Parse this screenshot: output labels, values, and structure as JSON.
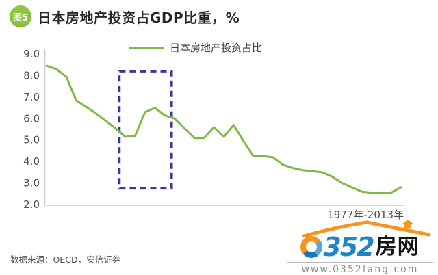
{
  "header": {
    "badge": "图5",
    "title": "日本房地产投资占GDP比重，%"
  },
  "legend": {
    "label": "日本房地产投资占比"
  },
  "chart_data": {
    "type": "line",
    "title": "日本房地产投资占GDP比重，%",
    "x_axis_label": "1977年-2013年",
    "xlabel": "1977年-2013年",
    "ylabel": "",
    "ylim": [
      2.0,
      9.0
    ],
    "y_ticks": [
      "9.0",
      "8.0",
      "7.0",
      "6.0",
      "5.0",
      "4.0",
      "3.0",
      "2.0"
    ],
    "grid": false,
    "legend_position": "top-center",
    "x": [
      1977,
      1978,
      1979,
      1980,
      1981,
      1982,
      1983,
      1984,
      1985,
      1986,
      1987,
      1988,
      1989,
      1990,
      1991,
      1992,
      1993,
      1994,
      1995,
      1996,
      1997,
      1998,
      1999,
      2000,
      2001,
      2002,
      2003,
      2004,
      2005,
      2006,
      2007,
      2008,
      2009,
      2010,
      2011,
      2012,
      2013
    ],
    "series": [
      {
        "name": "日本房地产投资占比",
        "values": [
          8.45,
          8.3,
          7.95,
          6.85,
          6.55,
          6.25,
          5.9,
          5.55,
          5.15,
          5.2,
          6.3,
          6.5,
          6.15,
          6.0,
          5.55,
          5.1,
          5.1,
          5.6,
          5.15,
          5.7,
          4.95,
          4.25,
          4.25,
          4.2,
          3.85,
          3.7,
          3.6,
          3.55,
          3.5,
          3.3,
          3.0,
          2.8,
          2.6,
          2.55,
          2.55,
          2.55,
          2.8
        ]
      }
    ],
    "highlight_box": {
      "x_from": 1984.4,
      "x_to": 1989.7,
      "value_from": 2.75,
      "value_to": 8.2,
      "style": "dashed",
      "color": "#38379b"
    }
  },
  "footer": {
    "source": "数据来源：OECD，安信证券"
  },
  "logo": {
    "full_name": "0352房网",
    "digits": "352",
    "suffix": "房网",
    "url": "www.0352fang.com"
  },
  "colors": {
    "line_green": "#7db946",
    "badge_green": "#8cc540",
    "highlight_blue": "#38379b",
    "axis_gray": "#c9c9c9",
    "logo_orange": "#f7941e",
    "logo_blue": "#1f85c4"
  }
}
